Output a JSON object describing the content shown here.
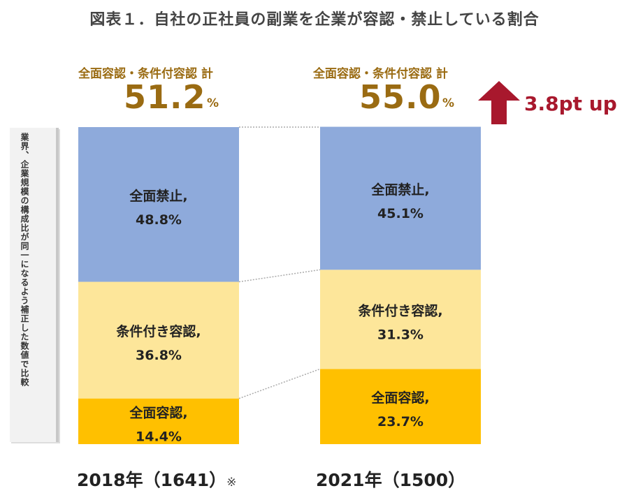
{
  "title": "図表１．自社の正社員の副業を企業が容認・禁止している割合",
  "side_note": "業界、企業規模の構成比が同一になるよう補正した数値で比較",
  "totals": [
    {
      "label": "全面容認・条件付容認 計",
      "value": "51.2",
      "unit": "%"
    },
    {
      "label": "全面容認・条件付容認 計",
      "value": "55.0",
      "unit": "%"
    }
  ],
  "change_text": "3.8pt up",
  "colors": {
    "full_prohibit": "#8eaadb",
    "conditional": "#fde69a",
    "full_allow": "#ffc000",
    "accent_text": "#9a6b12",
    "up_arrow": "#a8182d"
  },
  "chart_data": {
    "type": "bar",
    "stacked": true,
    "categories": [
      "2018年（1641）",
      "2021年（1500）"
    ],
    "category_note": [
      "※",
      ""
    ],
    "series": [
      {
        "name": "全面容認",
        "values": [
          14.4,
          23.7
        ],
        "labels": [
          "全面容認,",
          "全面容認,"
        ],
        "value_labels": [
          "14.4%",
          "23.7%"
        ]
      },
      {
        "name": "条件付き容認",
        "values": [
          36.8,
          31.3
        ],
        "labels": [
          "条件付き容認,",
          "条件付き容認,"
        ],
        "value_labels": [
          "36.8%",
          "31.3%"
        ]
      },
      {
        "name": "全面禁止",
        "values": [
          48.8,
          45.1
        ],
        "labels": [
          "全面禁止,",
          "全面禁止,"
        ],
        "value_labels": [
          "48.8%",
          "45.1%"
        ]
      }
    ],
    "ylim": [
      0,
      100
    ],
    "grid": false,
    "legend": "none"
  }
}
